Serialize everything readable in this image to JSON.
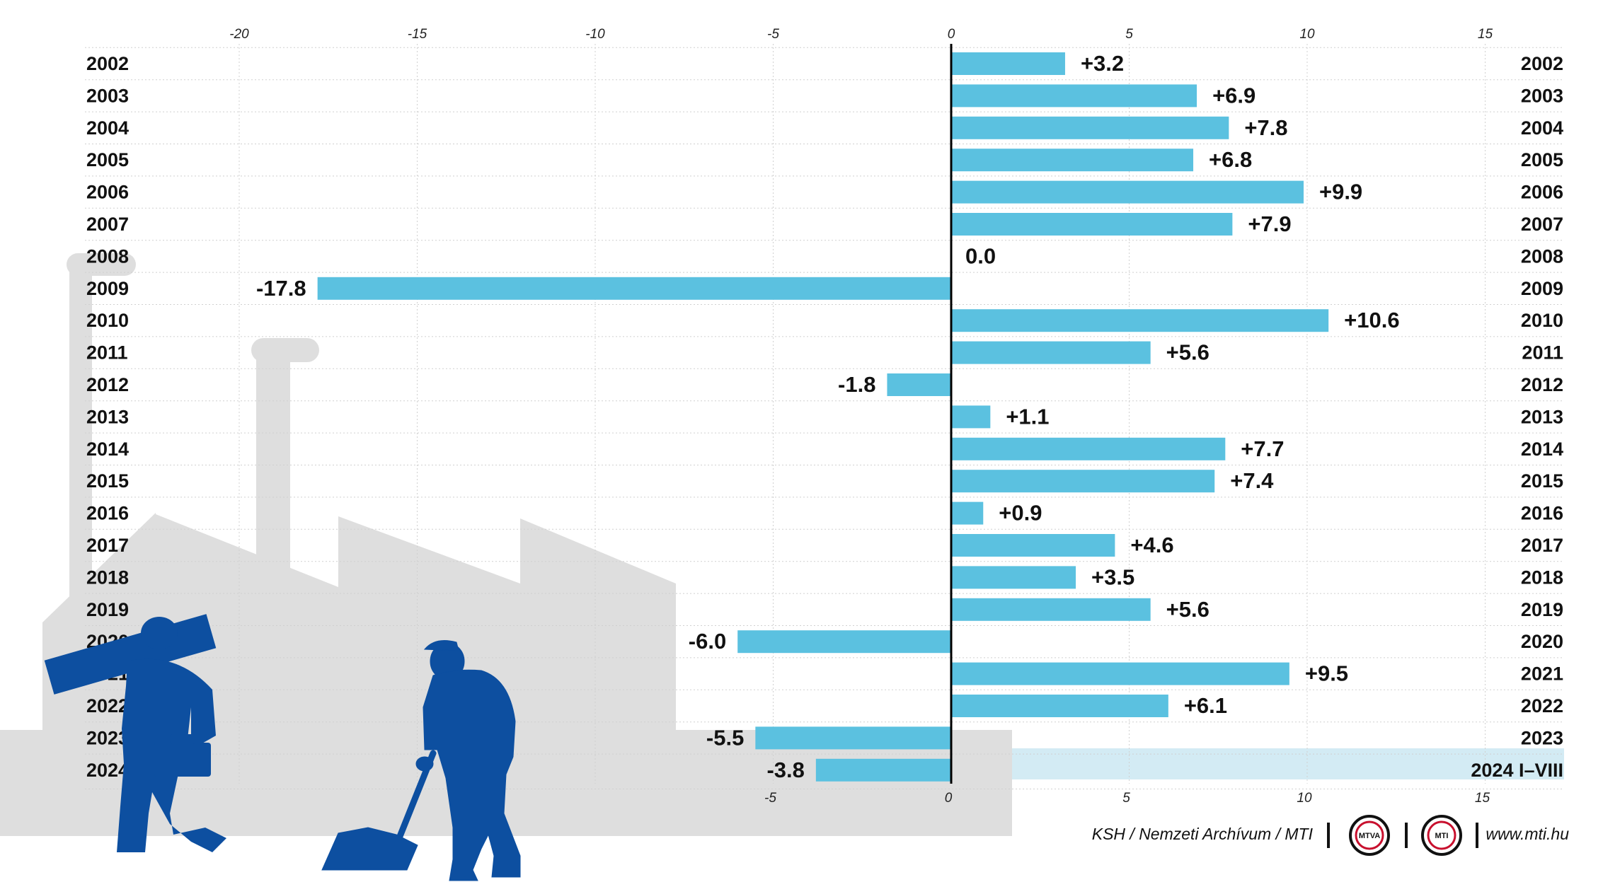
{
  "chart_data": {
    "type": "bar",
    "orientation": "horizontal",
    "categories": [
      "2002",
      "2003",
      "2004",
      "2005",
      "2006",
      "2007",
      "2008",
      "2009",
      "2010",
      "2011",
      "2012",
      "2013",
      "2014",
      "2015",
      "2016",
      "2017",
      "2018",
      "2019",
      "2020",
      "2021",
      "2022",
      "2023",
      "2024"
    ],
    "right_labels": [
      "2002",
      "2003",
      "2004",
      "2005",
      "2006",
      "2007",
      "2008",
      "2009",
      "2010",
      "2011",
      "2012",
      "2013",
      "2014",
      "2015",
      "2016",
      "2017",
      "2018",
      "2019",
      "2020",
      "2021",
      "2022",
      "2023",
      "2024  I–VIII"
    ],
    "values": [
      3.2,
      6.9,
      7.8,
      6.8,
      9.9,
      7.9,
      0.0,
      -17.8,
      10.6,
      5.6,
      -1.8,
      1.1,
      7.7,
      7.4,
      0.9,
      4.6,
      3.5,
      5.6,
      -6.0,
      9.5,
      6.1,
      -5.5,
      -3.8
    ],
    "value_labels": [
      "+3.2",
      "+6.9",
      "+7.8",
      "+6.8",
      "+9.9",
      "+7.9",
      "0.0",
      "-17.8",
      "+10.6",
      "+5.6",
      "-1.8",
      "+1.1",
      "+7.7",
      "+7.4",
      "+0.9",
      "+4.6",
      "+3.5",
      "+5.6",
      "-6.0",
      "+9.5",
      "+6.1",
      "-5.5",
      "-3.8"
    ],
    "xlim": [
      -20,
      15
    ],
    "top_ticks": [
      "-20",
      "-15",
      "-10",
      "-5",
      "0",
      "5",
      "10",
      "15"
    ],
    "bottom_ticks": [
      "-5",
      "0",
      "5",
      "10",
      "15"
    ],
    "grid": true,
    "highlighted_category": "2024"
  },
  "colors": {
    "bar": "#5bc1e0",
    "highlight_row": "#d3ebf4",
    "factory": "#dedede",
    "worker": "#0d4fa0",
    "zero_line": "#000000"
  },
  "footer": {
    "source": "KSH / Nemzeti Archívum / MTI",
    "logo1": "MTVA",
    "logo2": "MTI",
    "url": "www.mti.hu"
  },
  "illustration": {
    "icons": [
      "factory-icon",
      "worker-carrying-beam-icon",
      "worker-sweeping-icon"
    ]
  }
}
